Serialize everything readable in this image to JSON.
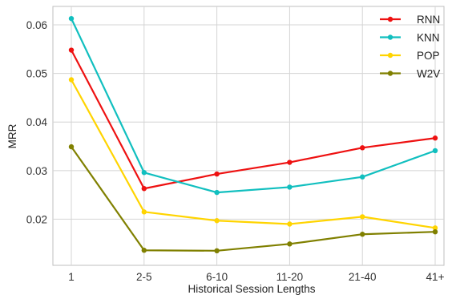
{
  "chart_data": {
    "type": "line",
    "title": "",
    "xlabel": "Historical Session Lengths",
    "ylabel": "MRR",
    "categories": [
      "1",
      "2-5",
      "6-10",
      "11-20",
      "21-40",
      "41+"
    ],
    "ylim": [
      0.0105,
      0.0638
    ],
    "yticks": [
      0.02,
      0.03,
      0.04,
      0.05,
      0.06
    ],
    "ytick_labels": [
      "0.02",
      "0.03",
      "0.04",
      "0.05",
      "0.06"
    ],
    "grid": true,
    "legend_position": "top-right",
    "series": [
      {
        "name": "RNN",
        "color": "#ee1111",
        "values": [
          0.0548,
          0.0263,
          0.0293,
          0.0317,
          0.0347,
          0.0367
        ]
      },
      {
        "name": "KNN",
        "color": "#11bfbf",
        "values": [
          0.0613,
          0.0296,
          0.0255,
          0.0266,
          0.0287,
          0.0341
        ]
      },
      {
        "name": "POP",
        "color": "#ffd400",
        "values": [
          0.0487,
          0.0215,
          0.0197,
          0.019,
          0.0205,
          0.0182
        ]
      },
      {
        "name": "W2V",
        "color": "#808000",
        "values": [
          0.0349,
          0.0136,
          0.0135,
          0.0149,
          0.0169,
          0.0174
        ]
      }
    ]
  }
}
